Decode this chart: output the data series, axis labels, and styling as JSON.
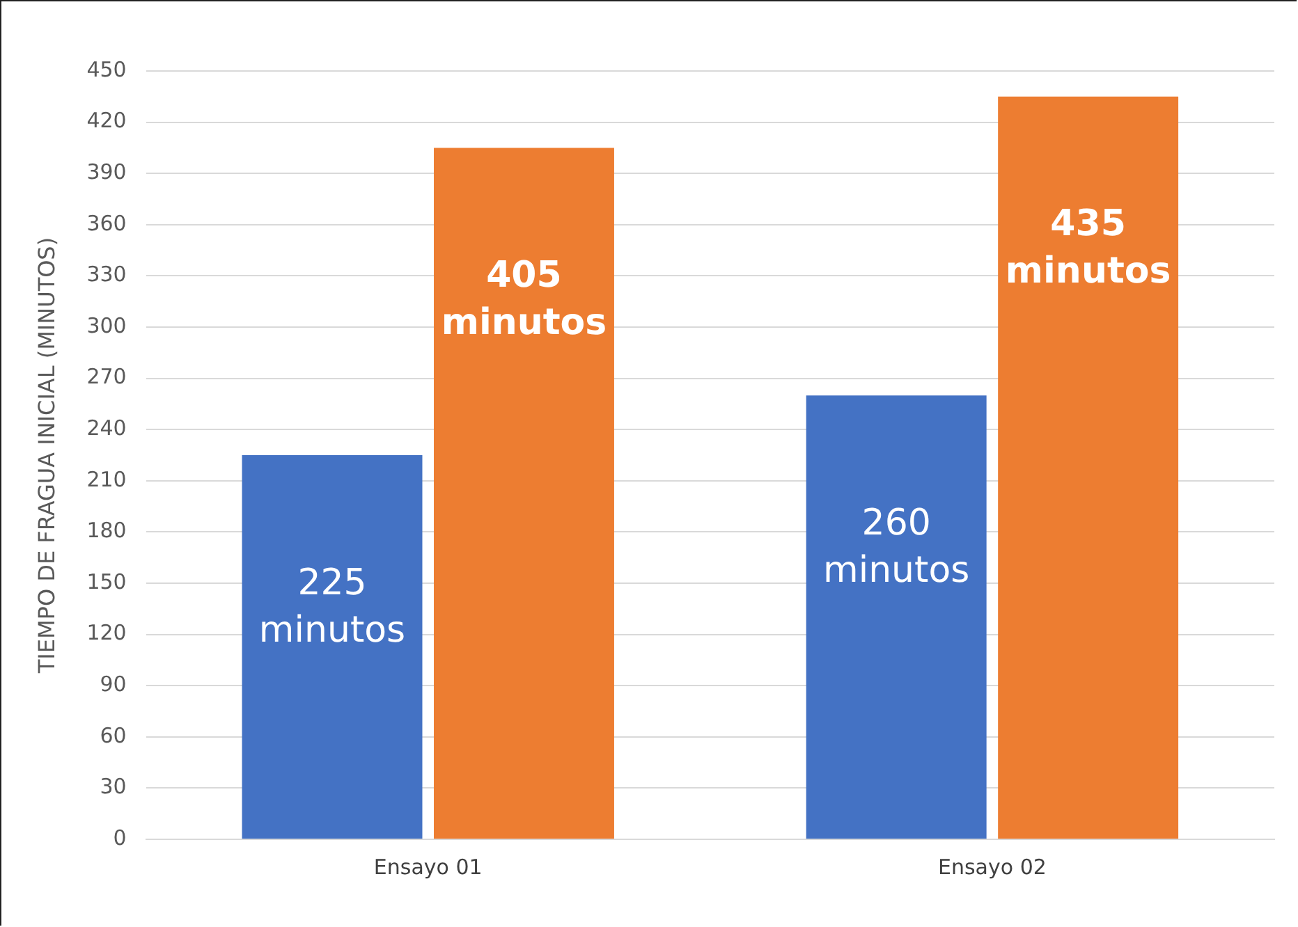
{
  "chart_data": {
    "type": "bar",
    "ylabel": "TIEMPO DE FRAGUA INICIAL (MINUTOS)",
    "categories": [
      "Ensayo 01",
      "Ensayo 02"
    ],
    "series": [
      {
        "color": "#4472c4",
        "values": [
          225,
          260
        ],
        "value_labels": [
          "225 minutos",
          "260 minutos"
        ]
      },
      {
        "color": "#ed7d31",
        "values": [
          405,
          435
        ],
        "value_labels": [
          "405 minutos",
          "435 minutos"
        ]
      }
    ],
    "ylim": [
      0,
      450
    ],
    "yticks": [
      0,
      30,
      60,
      90,
      120,
      150,
      180,
      210,
      240,
      270,
      300,
      330,
      360,
      390,
      420,
      450
    ],
    "grid": "y",
    "legend": false
  }
}
